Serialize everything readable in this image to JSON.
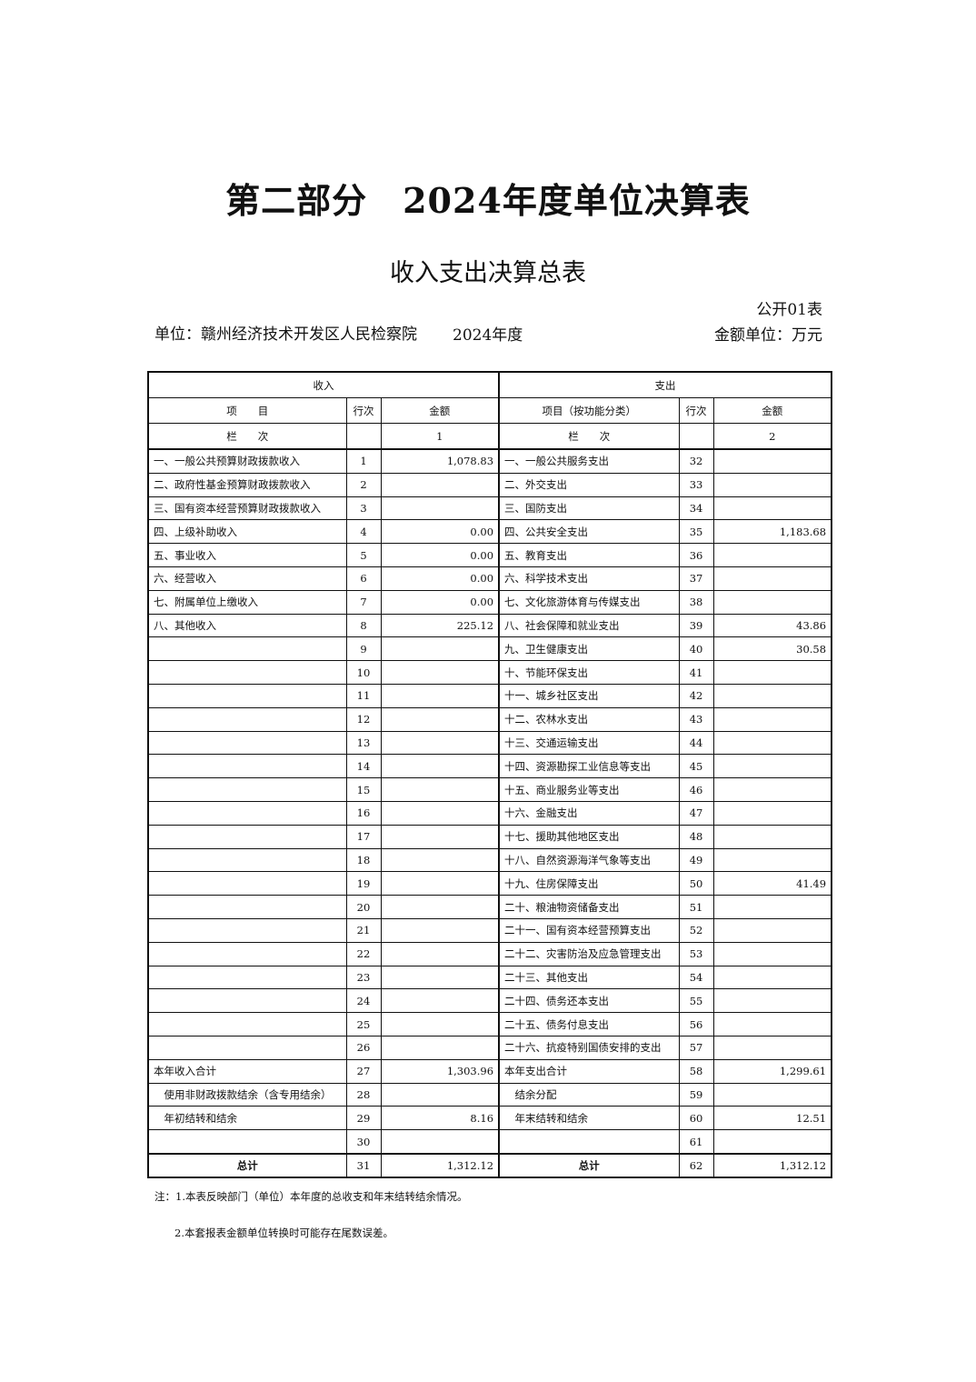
{
  "title": "第二部分　2024年度单位决算表",
  "subtitle": "收入支出决算总表",
  "form_no": "公开01表",
  "unit": "单位：赣州经济技术开发区人民检察院",
  "year": "2024年度",
  "money_unit": "金额单位：万元",
  "table": {
    "income_header": "收入",
    "expense_header": "支出",
    "col_item": "项　　目",
    "col_line": "行次",
    "col_amount": "金额",
    "col_item_func": "项目（按功能分类）",
    "col_index_label": "栏　　次",
    "col_index_1": "1",
    "col_index_2": "2",
    "rows": [
      [
        "一、一般公共预算财政拨款收入",
        "1",
        "1,078.83",
        "一、一般公共服务支出",
        "32",
        ""
      ],
      [
        "二、政府性基金预算财政拨款收入",
        "2",
        "",
        "二、外交支出",
        "33",
        ""
      ],
      [
        "三、国有资本经营预算财政拨款收入",
        "3",
        "",
        "三、国防支出",
        "34",
        ""
      ],
      [
        "四、上级补助收入",
        "4",
        "0.00",
        "四、公共安全支出",
        "35",
        "1,183.68"
      ],
      [
        "五、事业收入",
        "5",
        "0.00",
        "五、教育支出",
        "36",
        ""
      ],
      [
        "六、经营收入",
        "6",
        "0.00",
        "六、科学技术支出",
        "37",
        ""
      ],
      [
        "七、附属单位上缴收入",
        "7",
        "0.00",
        "七、文化旅游体育与传媒支出",
        "38",
        ""
      ],
      [
        "八、其他收入",
        "8",
        "225.12",
        "八、社会保障和就业支出",
        "39",
        "43.86"
      ],
      [
        "",
        "9",
        "",
        "九、卫生健康支出",
        "40",
        "30.58"
      ],
      [
        "",
        "10",
        "",
        "十、节能环保支出",
        "41",
        ""
      ],
      [
        "",
        "11",
        "",
        "十一、城乡社区支出",
        "42",
        ""
      ],
      [
        "",
        "12",
        "",
        "十二、农林水支出",
        "43",
        ""
      ],
      [
        "",
        "13",
        "",
        "十三、交通运输支出",
        "44",
        ""
      ],
      [
        "",
        "14",
        "",
        "十四、资源勘探工业信息等支出",
        "45",
        ""
      ],
      [
        "",
        "15",
        "",
        "十五、商业服务业等支出",
        "46",
        ""
      ],
      [
        "",
        "16",
        "",
        "十六、金融支出",
        "47",
        ""
      ],
      [
        "",
        "17",
        "",
        "十七、援助其他地区支出",
        "48",
        ""
      ],
      [
        "",
        "18",
        "",
        "十八、自然资源海洋气象等支出",
        "49",
        ""
      ],
      [
        "",
        "19",
        "",
        "十九、住房保障支出",
        "50",
        "41.49"
      ],
      [
        "",
        "20",
        "",
        "二十、粮油物资储备支出",
        "51",
        ""
      ],
      [
        "",
        "21",
        "",
        "二十一、国有资本经营预算支出",
        "52",
        ""
      ],
      [
        "",
        "22",
        "",
        "二十二、灾害防治及应急管理支出",
        "53",
        ""
      ],
      [
        "",
        "23",
        "",
        "二十三、其他支出",
        "54",
        ""
      ],
      [
        "",
        "24",
        "",
        "二十四、债务还本支出",
        "55",
        ""
      ],
      [
        "",
        "25",
        "",
        "二十五、债务付息支出",
        "56",
        ""
      ],
      [
        "",
        "26",
        "",
        "二十六、抗疫特别国债安排的支出",
        "57",
        ""
      ],
      [
        "本年收入合计",
        "27",
        "1,303.96",
        "本年支出合计",
        "58",
        "1,299.61"
      ],
      [
        "　使用非财政拨款结余（含专用结余）",
        "28",
        "",
        "　结余分配",
        "59",
        ""
      ],
      [
        "　年初结转和结余",
        "29",
        "8.16",
        "　年末结转和结余",
        "60",
        "12.51"
      ],
      [
        "",
        "30",
        "",
        "",
        "61",
        ""
      ]
    ],
    "total": [
      "总计",
      "31",
      "1,312.12",
      "总计",
      "62",
      "1,312.12"
    ]
  },
  "notes": [
    "注：1.本表反映部门（单位）本年度的总收支和年末结转结余情况。",
    "2.本套报表金额单位转换时可能存在尾数误差。"
  ]
}
